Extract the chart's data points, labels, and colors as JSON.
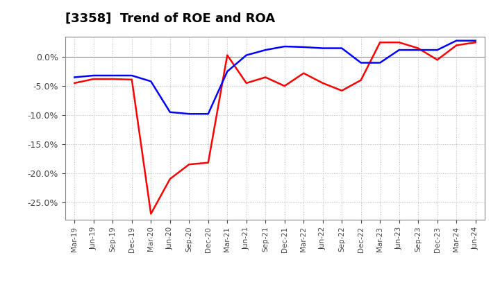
{
  "title": "[3358]  Trend of ROE and ROA",
  "x_labels": [
    "Mar-19",
    "Jun-19",
    "Sep-19",
    "Dec-19",
    "Mar-20",
    "Jun-20",
    "Sep-20",
    "Dec-20",
    "Mar-21",
    "Jun-21",
    "Sep-21",
    "Dec-21",
    "Mar-22",
    "Jun-22",
    "Sep-22",
    "Dec-22",
    "Mar-23",
    "Jun-23",
    "Sep-23",
    "Dec-23",
    "Mar-24",
    "Jun-24"
  ],
  "roe": [
    -4.5,
    -3.8,
    -3.8,
    -3.9,
    -27.0,
    -21.0,
    -18.5,
    -18.2,
    0.3,
    -4.5,
    -3.5,
    -5.0,
    -2.8,
    -4.5,
    -5.8,
    -4.0,
    2.5,
    2.5,
    1.5,
    -0.5,
    2.0,
    2.5
  ],
  "roa": [
    -3.5,
    -3.2,
    -3.2,
    -3.2,
    -4.2,
    -9.5,
    -9.8,
    -9.8,
    -2.5,
    0.3,
    1.2,
    1.8,
    1.7,
    1.5,
    1.5,
    -1.0,
    -1.0,
    1.2,
    1.2,
    1.2,
    2.8,
    2.8
  ],
  "roe_color": "#ff0000",
  "roa_color": "#0000ff",
  "ylim": [
    -28.0,
    3.5
  ],
  "yticks": [
    0.0,
    -5.0,
    -10.0,
    -15.0,
    -20.0,
    -25.0
  ],
  "background_color": "#ffffff",
  "grid_color": "#bbbbbb",
  "title_fontsize": 13,
  "line_width": 1.8
}
